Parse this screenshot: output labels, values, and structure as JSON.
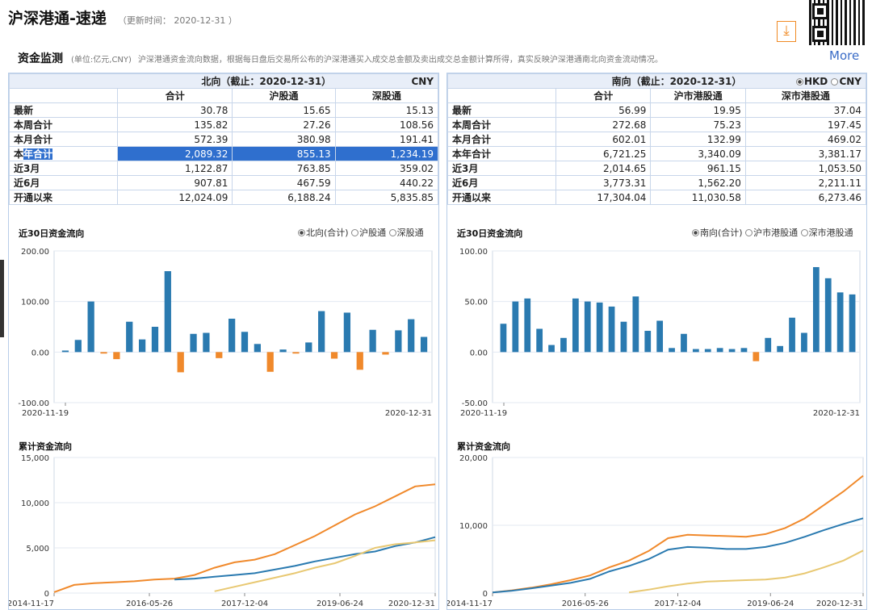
{
  "header": {
    "title": "沪深港通-速递",
    "update_label": "（更新时间：",
    "update_value": "2020-12-31",
    "update_close": "）"
  },
  "subheader": {
    "title": "资金监测",
    "unit": "(单位:亿元,CNY)",
    "description": "沪深港通资金流向数据，根据每日盘后交易所公布的沪深港通买入成交总金额及卖出成交总金额计算所得，真实反映沪深港通南北向资金流动情况。",
    "more": "More"
  },
  "north": {
    "title": "北向（截止：2020-12-31）",
    "currency": "CNY",
    "columns": [
      "合计",
      "沪股通",
      "深股通"
    ],
    "rows": [
      {
        "label": "最新",
        "values": [
          "30.78",
          "15.65",
          "15.13"
        ]
      },
      {
        "label": "本周合计",
        "values": [
          "135.82",
          "27.26",
          "108.56"
        ]
      },
      {
        "label": "本月合计",
        "values": [
          "572.39",
          "380.98",
          "191.41"
        ]
      },
      {
        "label": "本年合计",
        "values": [
          "2,089.32",
          "855.13",
          "1,234.19"
        ],
        "selected": true
      },
      {
        "label": "近3月",
        "values": [
          "1,122.87",
          "763.85",
          "359.02"
        ]
      },
      {
        "label": "近6月",
        "values": [
          "907.81",
          "467.59",
          "440.22"
        ]
      },
      {
        "label": "开通以来",
        "values": [
          "12,024.09",
          "6,188.24",
          "5,835.85"
        ]
      }
    ],
    "flow_title": "近30日资金流向",
    "flow_options": [
      "北向(合计)",
      "沪股通",
      "深股通"
    ],
    "cum_title": "累计资金流向"
  },
  "south": {
    "title": "南向（截止：2020-12-31）",
    "currency_options": [
      "HKD",
      "CNY"
    ],
    "columns": [
      "合计",
      "沪市港股通",
      "深市港股通"
    ],
    "rows": [
      {
        "label": "最新",
        "values": [
          "56.99",
          "19.95",
          "37.04"
        ]
      },
      {
        "label": "本周合计",
        "values": [
          "272.68",
          "75.23",
          "197.45"
        ]
      },
      {
        "label": "本月合计",
        "values": [
          "602.01",
          "132.99",
          "469.02"
        ]
      },
      {
        "label": "本年合计",
        "values": [
          "6,721.25",
          "3,340.09",
          "3,381.17"
        ]
      },
      {
        "label": "近3月",
        "values": [
          "2,014.65",
          "961.15",
          "1,053.50"
        ]
      },
      {
        "label": "近6月",
        "values": [
          "3,773.31",
          "1,562.20",
          "2,211.11"
        ]
      },
      {
        "label": "开通以来",
        "values": [
          "17,304.04",
          "11,030.58",
          "6,273.46"
        ]
      }
    ],
    "flow_title": "近30日资金流向",
    "flow_options": [
      "南向(合计)",
      "沪市港股通",
      "深市港股通"
    ],
    "cum_title": "累计资金流向"
  },
  "colors": {
    "positive": "#2a7ab0",
    "negative": "#f0892b",
    "total": "#f0892b",
    "sh": "#2a7ab0",
    "sz": "#e8c872"
  },
  "chart_data": [
    {
      "type": "bar",
      "id": "north_30d",
      "ylim": [
        -100,
        200
      ],
      "yticks": [
        "200.00",
        "100.00",
        "0.00",
        "-100.00"
      ],
      "ytick_values": [
        200,
        100,
        0,
        -100
      ],
      "x_start": "2020-11-19",
      "x_end": "2020-12-31",
      "values": [
        3,
        24,
        100,
        -3,
        -14,
        60,
        25,
        50,
        160,
        -40,
        36,
        38,
        -12,
        66,
        40,
        16,
        -39,
        5,
        -3,
        19,
        81,
        -13,
        78,
        -35,
        44,
        -5,
        43,
        65,
        30
      ]
    },
    {
      "type": "bar",
      "id": "south_30d",
      "ylim": [
        -50,
        100
      ],
      "yticks": [
        "100.00",
        "50.00",
        "0.00",
        "-50.00"
      ],
      "ytick_values": [
        100,
        50,
        0,
        -50
      ],
      "x_start": "2020-11-19",
      "x_end": "2020-12-31",
      "values": [
        28,
        50,
        53,
        23,
        7,
        14,
        53,
        50,
        49,
        45,
        30,
        55,
        21,
        31,
        4,
        18,
        3,
        3,
        4,
        3,
        4,
        -9,
        14,
        6,
        34,
        19,
        84,
        73,
        59,
        57
      ]
    },
    {
      "type": "line",
      "id": "north_cum",
      "ylim": [
        0,
        15000
      ],
      "yticks": [
        "15,000",
        "10,000",
        "5,000",
        "0"
      ],
      "ytick_values": [
        15000,
        10000,
        5000,
        0
      ],
      "xticks": [
        "2014-11-17",
        "2016-05-26",
        "2017-12-04",
        "2019-06-24",
        "2020-12-31"
      ],
      "series": [
        {
          "color_key": "total",
          "values": [
            100,
            900,
            1100,
            1200,
            1300,
            1500,
            1600,
            2000,
            2800,
            3400,
            3700,
            4300,
            5300,
            6300,
            7500,
            8700,
            9600,
            10700,
            11800,
            12024
          ]
        },
        {
          "color_key": "sh",
          "start": 6,
          "values": [
            1500,
            1600,
            1800,
            2000,
            2200,
            2600,
            3000,
            3500,
            3900,
            4300,
            4600,
            5200,
            5600,
            6188
          ]
        },
        {
          "color_key": "sz",
          "start": 8,
          "values": [
            200,
            700,
            1200,
            1700,
            2200,
            2800,
            3300,
            4100,
            5000,
            5400,
            5600,
            5836
          ]
        }
      ]
    },
    {
      "type": "line",
      "id": "south_cum",
      "ylim": [
        0,
        20000
      ],
      "yticks": [
        "20,000",
        "10,000",
        "0"
      ],
      "ytick_values": [
        20000,
        10000,
        0
      ],
      "xticks": [
        "2014-11-17",
        "2016-05-26",
        "2017-12-04",
        "2019-06-24",
        "2020-12-31"
      ],
      "series": [
        {
          "color_key": "total",
          "values": [
            100,
            400,
            800,
            1300,
            1900,
            2600,
            3800,
            4800,
            6200,
            8100,
            8600,
            8500,
            8400,
            8300,
            8700,
            9600,
            11000,
            13000,
            15000,
            17304
          ]
        },
        {
          "color_key": "sh",
          "values": [
            100,
            350,
            700,
            1100,
            1500,
            2100,
            3200,
            4000,
            5000,
            6400,
            6800,
            6700,
            6500,
            6500,
            6800,
            7400,
            8300,
            9300,
            10200,
            11031
          ]
        },
        {
          "color_key": "sz",
          "start": 7,
          "values": [
            100,
            500,
            1000,
            1400,
            1700,
            1800,
            1900,
            2000,
            2300,
            2900,
            3800,
            4800,
            6273
          ]
        }
      ]
    }
  ]
}
